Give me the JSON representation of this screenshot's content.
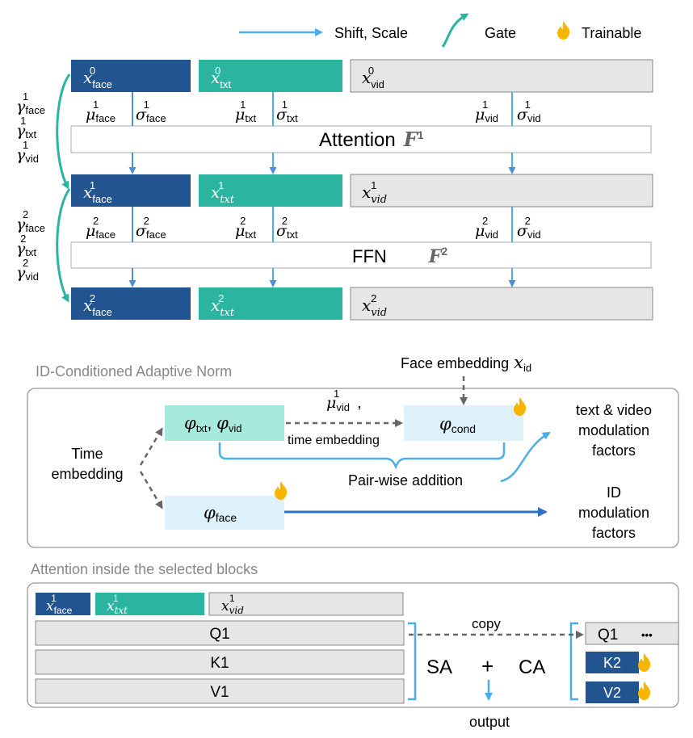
{
  "colors": {
    "face": "#22558f",
    "txt": "#2bb5a0",
    "vid": "#e6e6e6",
    "shift_scale_arrow": "#4aaee8",
    "gate_arrow": "#2bb5a0",
    "cond_box": "#dff1fb",
    "txtvid_box": "#a8e9dd",
    "flame": "#f7b500"
  },
  "legend": {
    "shift_scale": "Shift, Scale",
    "gate": "Gate",
    "trainable": "Trainable"
  },
  "top": {
    "rows": [
      {
        "face": "face",
        "txt": "txt",
        "vid": "vid",
        "sup": "0"
      },
      {
        "face": "face",
        "txt": "txt",
        "vid": "vid",
        "sup": "1"
      },
      {
        "face": "face",
        "txt": "txt",
        "vid": "vid",
        "sup": "2"
      }
    ],
    "x_symbol": "x",
    "mu_symbol": "μ",
    "sigma_symbol": "σ",
    "gamma_symbol": "γ",
    "attention_label": "Attention",
    "ffn_label": "FFN",
    "f_symbol": "F",
    "f1_sup": "1",
    "f2_sup": "2",
    "sub_face": "face",
    "sub_txt": "txt",
    "sub_vid": "vid",
    "sub_txt_italic": "txt",
    "sub_vid_italic": "vid"
  },
  "adaptive_norm": {
    "title": "ID-Conditioned Adaptive Norm",
    "face_embedding": "Face embedding",
    "x_id_sym": "x",
    "x_id_sub": "id",
    "phi": "φ",
    "phi_txt_sub": "txt",
    "phi_vid_sub": "vid",
    "phi_cond_sub": "cond",
    "phi_face_sub": "face",
    "mu_vid": "μ",
    "mu_vid_sup": "1",
    "mu_vid_sub": "vid",
    "time_embedding_small": "time embedding",
    "time_embedding_line1": "Time",
    "time_embedding_line2": "embedding",
    "pairwise": "Pair-wise addition",
    "tv_line1": "text & video",
    "tv_line2": "modulation",
    "tv_line3": "factors",
    "id_line1": "ID",
    "id_line2": "modulation",
    "id_line3": "factors"
  },
  "attention": {
    "title": "Attention inside the selected blocks",
    "q1": "Q1",
    "k1": "K1",
    "v1": "V1",
    "sa": "SA",
    "plus": "+",
    "ca": "CA",
    "copy": "copy",
    "output": "output",
    "q1_right": "Q1",
    "dots": "•••",
    "k2": "K2",
    "v2": "V2"
  }
}
